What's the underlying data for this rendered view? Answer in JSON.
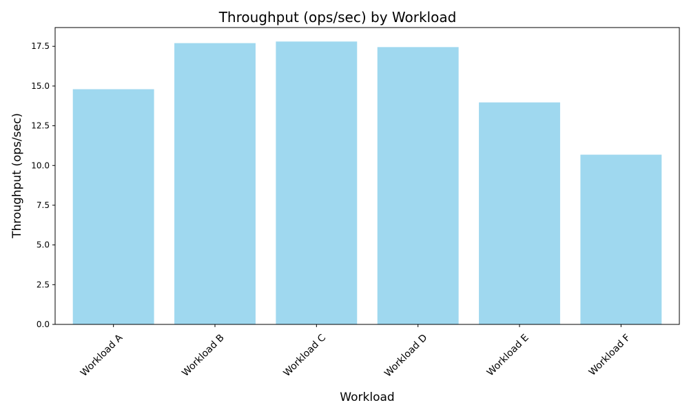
{
  "chart_data": {
    "type": "bar",
    "title": "Throughput (ops/sec) by Workload",
    "xlabel": "Workload",
    "ylabel": "Throughput (ops/sec)",
    "categories": [
      "Workload A",
      "Workload B",
      "Workload C",
      "Workload D",
      "Workload E",
      "Workload F"
    ],
    "values": [
      14.8,
      17.7,
      17.8,
      17.45,
      13.97,
      10.68
    ],
    "ylim": [
      0,
      18.68
    ],
    "yticks": [
      0.0,
      2.5,
      5.0,
      7.5,
      10.0,
      12.5,
      15.0,
      17.5
    ],
    "ytick_labels": [
      "0.0",
      "2.5",
      "5.0",
      "7.5",
      "10.0",
      "12.5",
      "15.0",
      "17.5"
    ],
    "xtick_rotation_deg": 45,
    "grid": false,
    "legend": "none",
    "bar_color": "#87ceeb",
    "bar_opacity": 0.8
  }
}
